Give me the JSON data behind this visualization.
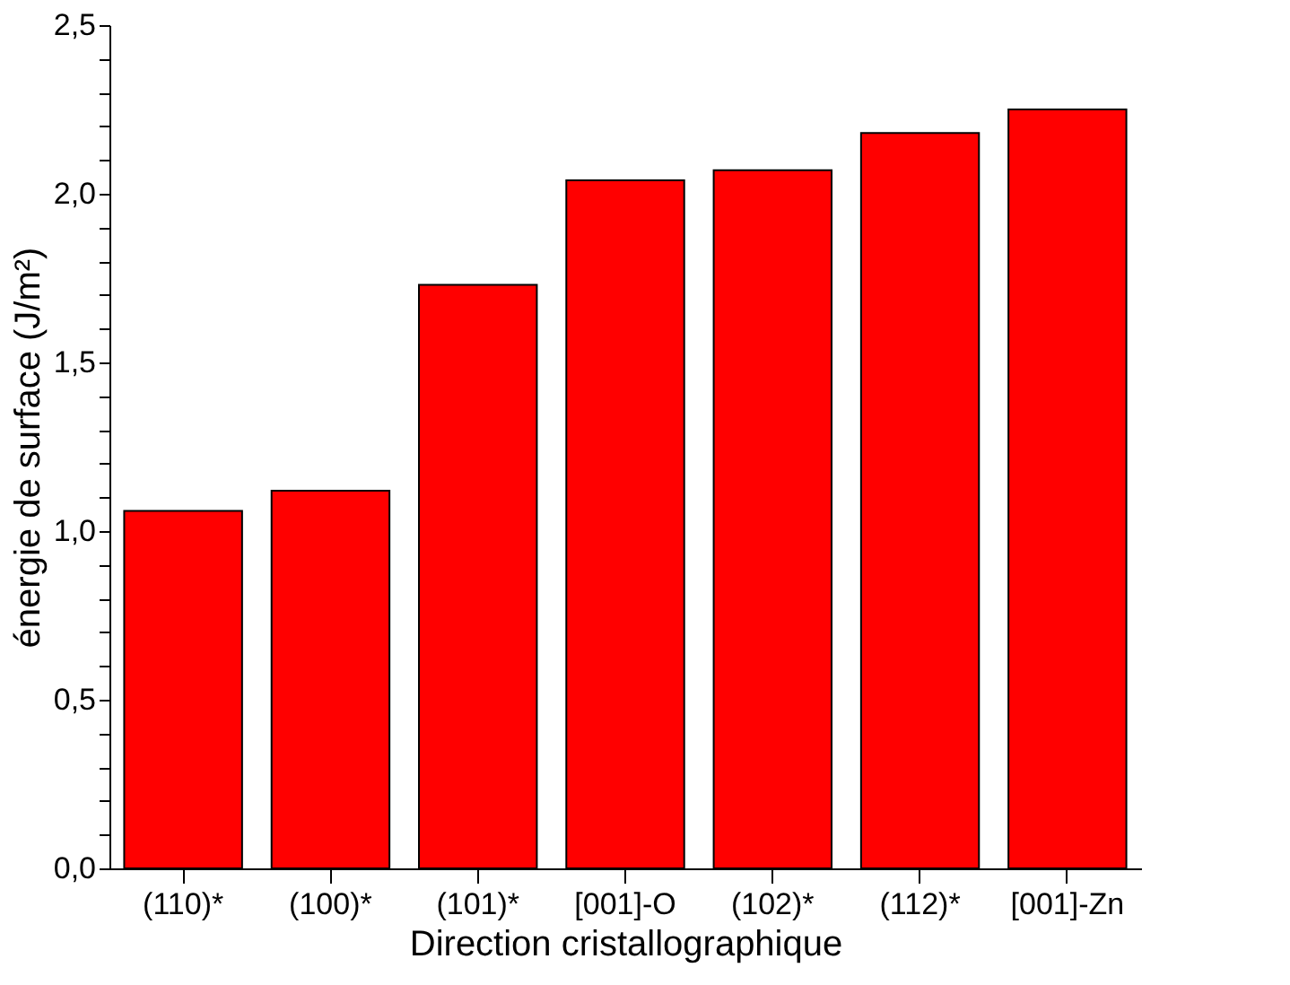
{
  "chart_data": {
    "type": "bar",
    "xlabel": "Direction cristallographique",
    "ylabel": "énergie de surface (J/m²)",
    "categories": [
      "(110)*",
      "(100)*",
      "(101)*",
      "[001]-O",
      "(102)*",
      "(112)*",
      "[001]-Zn"
    ],
    "values": [
      1.06,
      1.12,
      1.73,
      2.04,
      2.07,
      2.18,
      2.25
    ],
    "color": "#ff0000",
    "ylim": [
      0,
      2.5
    ],
    "yticks": [
      {
        "value": 0,
        "label": "0,0"
      },
      {
        "value": 0.1,
        "label": null
      },
      {
        "value": 0.2,
        "label": null
      },
      {
        "value": 0.3,
        "label": null
      },
      {
        "value": 0.4,
        "label": null
      },
      {
        "value": 0.5,
        "label": "0,5"
      },
      {
        "value": 0.6,
        "label": null
      },
      {
        "value": 0.7,
        "label": null
      },
      {
        "value": 0.8,
        "label": null
      },
      {
        "value": 0.9,
        "label": null
      },
      {
        "value": 1.0,
        "label": "1,0"
      },
      {
        "value": 1.1,
        "label": null
      },
      {
        "value": 1.2,
        "label": null
      },
      {
        "value": 1.3,
        "label": null
      },
      {
        "value": 1.4,
        "label": null
      },
      {
        "value": 1.5,
        "label": "1,5"
      },
      {
        "value": 1.6,
        "label": null
      },
      {
        "value": 1.7,
        "label": null
      },
      {
        "value": 1.8,
        "label": null
      },
      {
        "value": 1.9,
        "label": null
      },
      {
        "value": 2.0,
        "label": "2,0"
      },
      {
        "value": 2.1,
        "label": null
      },
      {
        "value": 2.2,
        "label": null
      },
      {
        "value": 2.3,
        "label": null
      },
      {
        "value": 2.4,
        "label": null
      },
      {
        "value": 2.5,
        "label": "2,5"
      }
    ],
    "grid": false
  }
}
